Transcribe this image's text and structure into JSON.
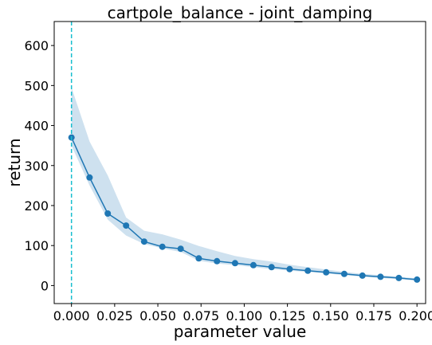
{
  "chart_data": {
    "type": "line",
    "title": "cartpole_balance - joint_damping",
    "xlabel": "parameter value",
    "ylabel": "return",
    "xlim": [
      -0.01,
      0.205
    ],
    "ylim": [
      -45,
      660
    ],
    "xticks": [
      0.0,
      0.025,
      0.05,
      0.075,
      0.1,
      0.125,
      0.15,
      0.175,
      0.2
    ],
    "xtick_labels": [
      "0.000",
      "0.025",
      "0.050",
      "0.075",
      "0.100",
      "0.125",
      "0.150",
      "0.175",
      "0.200"
    ],
    "yticks": [
      0,
      100,
      200,
      300,
      400,
      500,
      600
    ],
    "ytick_labels": [
      "0",
      "100",
      "200",
      "300",
      "400",
      "500",
      "600"
    ],
    "grid": false,
    "vline": {
      "x": 0.0,
      "color": "#17becf",
      "style": "dashed"
    },
    "series": [
      {
        "color": "#1f77b4",
        "band_color": "#a6c8e2",
        "x": [
          0.0,
          0.0105,
          0.021,
          0.0316,
          0.0421,
          0.0526,
          0.0632,
          0.0737,
          0.0842,
          0.0947,
          0.1053,
          0.1158,
          0.1263,
          0.1368,
          0.1474,
          0.1579,
          0.1684,
          0.1789,
          0.1895,
          0.2
        ],
        "y": [
          370,
          270,
          180,
          150,
          110,
          97,
          92,
          68,
          61,
          56,
          51,
          46,
          41,
          37,
          33,
          29,
          25,
          22,
          19,
          15
        ],
        "upper": [
          495,
          360,
          275,
          170,
          137,
          128,
          115,
          99,
          86,
          74,
          66,
          60,
          52,
          46,
          40,
          34,
          29,
          26,
          22,
          18
        ],
        "lower": [
          350,
          250,
          165,
          125,
          104,
          93,
          84,
          62,
          55,
          51,
          46,
          41,
          37,
          34,
          30,
          26,
          22,
          19,
          16,
          12
        ]
      }
    ]
  }
}
